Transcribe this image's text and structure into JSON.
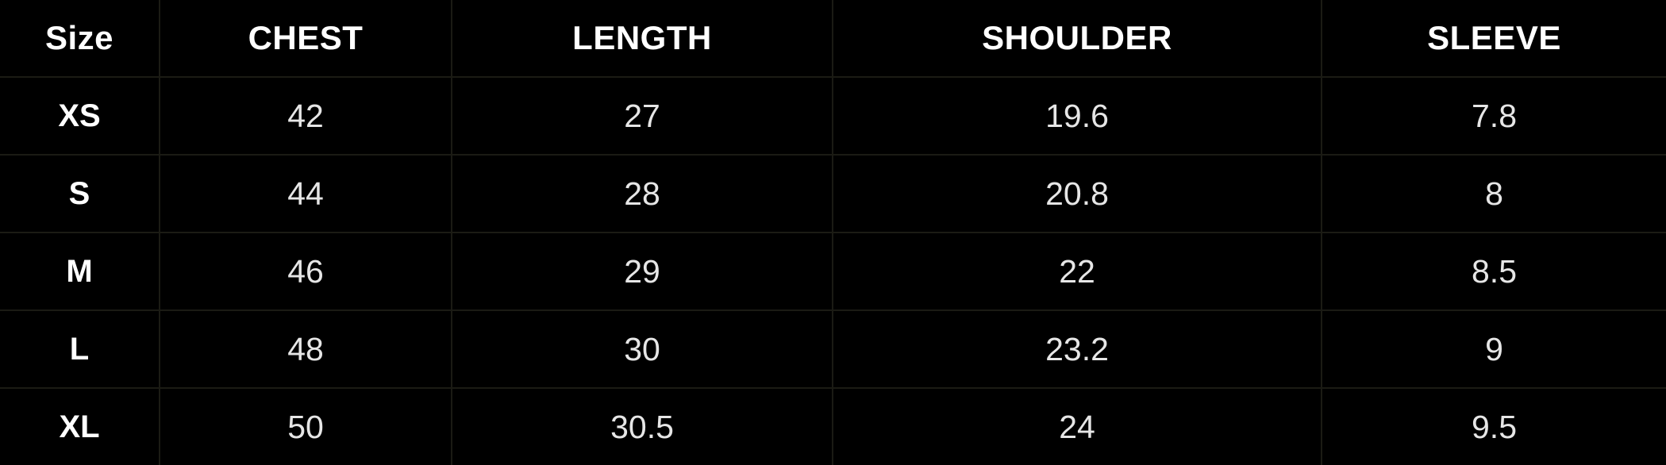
{
  "table": {
    "headers": [
      "Size",
      "CHEST",
      "LENGTH",
      "SHOULDER",
      "SLEEVE"
    ],
    "rows": [
      [
        "XS",
        "42",
        "27",
        "19.6",
        "7.8"
      ],
      [
        "S",
        "44",
        "28",
        "20.8",
        "8"
      ],
      [
        "M",
        "46",
        "29",
        "22",
        "8.5"
      ],
      [
        "L",
        "48",
        "30",
        "23.2",
        "9"
      ],
      [
        "XL",
        "50",
        "30.5",
        "24",
        "9.5"
      ]
    ]
  },
  "colors": {
    "background": "#000000",
    "header_text": "#ffffff",
    "cell_text": "#e6e6e6",
    "grid_line": "#1b1b14"
  }
}
